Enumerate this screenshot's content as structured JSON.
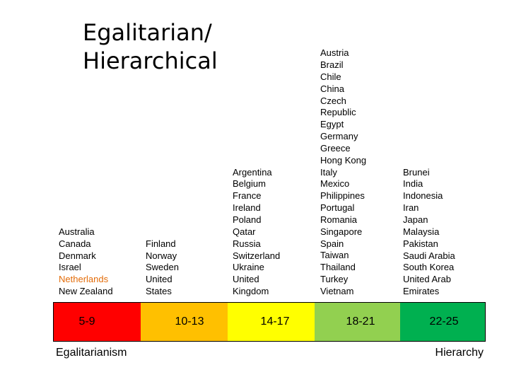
{
  "title": [
    "Egalitarian/",
    "Hierarchical"
  ],
  "columns": [
    {
      "range": "5-9",
      "color": "#ff0000",
      "countries": [
        "Australia",
        "Canada",
        "Denmark",
        "Israel",
        "Netherlands",
        "New Zealand"
      ],
      "highlight": "Netherlands"
    },
    {
      "range": "10-13",
      "color": "#ffc000",
      "countries": [
        "Finland",
        "Norway",
        "Sweden",
        "United",
        "States"
      ]
    },
    {
      "range": "14-17",
      "color": "#ffff00",
      "countries": [
        "Argentina",
        "Belgium",
        "France",
        "Ireland",
        "Poland",
        "Qatar",
        "Russia",
        "Switzerland",
        "Ukraine",
        "United",
        "Kingdom"
      ]
    },
    {
      "range": "18-21",
      "color": "#92d050",
      "countries": [
        "Austria",
        "Brazil",
        "Chile",
        "China",
        "Czech",
        "Republic",
        "Egypt",
        "Germany",
        "Greece",
        "Hong Kong",
        "Italy",
        "Mexico",
        "Philippines",
        "Portugal",
        "Romania",
        "Singapore",
        "Spain",
        "Taiwan",
        "Thailand",
        "Turkey",
        "Vietnam"
      ]
    },
    {
      "range": "22-25",
      "color": "#00b050",
      "countries": [
        "Brunei",
        "India",
        "Indonesia",
        "Iran",
        "Japan",
        "Malaysia",
        "Pakistan",
        "Saudi Arabia",
        "South Korea",
        "United Arab",
        "Emirates"
      ]
    }
  ],
  "highlight_color": "#e36c09",
  "labels": {
    "left": "Egalitarianism",
    "right": "Hierarchy"
  }
}
